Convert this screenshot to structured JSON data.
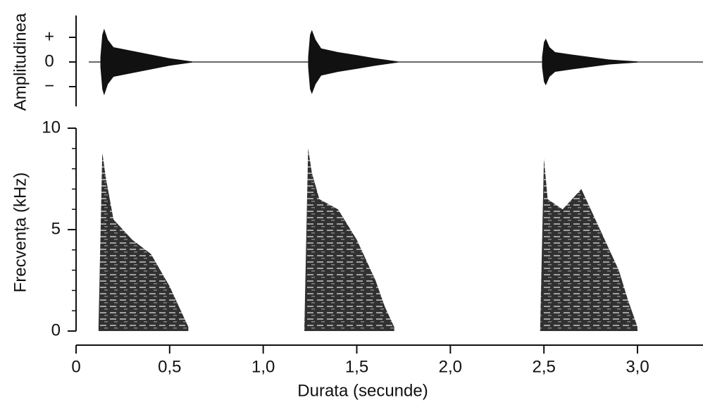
{
  "chart_data": [
    {
      "type": "waveform",
      "ylabel": "Amplitudinea",
      "color": "#111111",
      "xlim": [
        0,
        3.35
      ],
      "ylim": [
        -1.8,
        1.8
      ],
      "yticks": [
        {
          "value": 1,
          "label": "+"
        },
        {
          "value": 0,
          "label": "0"
        },
        {
          "value": -1,
          "label": "−"
        }
      ],
      "series": [
        {
          "x": [
            0.13,
            0.14,
            0.15,
            0.17,
            0.2,
            0.3,
            0.4,
            0.5,
            0.62
          ],
          "values": [
            0.2,
            1.1,
            1.35,
            0.9,
            0.6,
            0.45,
            0.3,
            0.15,
            0.02
          ]
        },
        {
          "x": [
            1.24,
            1.25,
            1.26,
            1.28,
            1.31,
            1.4,
            1.5,
            1.6,
            1.72
          ],
          "values": [
            0.2,
            1.1,
            1.3,
            0.9,
            0.55,
            0.4,
            0.28,
            0.15,
            0.02
          ]
        },
        {
          "x": [
            2.49,
            2.5,
            2.51,
            2.53,
            2.56,
            2.65,
            2.75,
            2.85,
            3.0
          ],
          "values": [
            0.2,
            0.8,
            0.95,
            0.6,
            0.4,
            0.3,
            0.2,
            0.1,
            0.02
          ]
        }
      ]
    },
    {
      "type": "spectrogram",
      "ylabel": "Frecvența (kHz)",
      "xlabel": "Durata (secunde)",
      "color": "#1a1a1a",
      "xlim": [
        0,
        3.35
      ],
      "ylim": [
        0,
        10
      ],
      "yticks": [
        0,
        5,
        10
      ],
      "yminorticks": [
        1,
        2,
        3,
        4,
        6,
        7,
        8,
        9
      ],
      "xticks": [
        0,
        {
          "value": 0.5,
          "label": "0,5"
        },
        {
          "value": 1,
          "label": "1,0"
        },
        {
          "value": 1.5,
          "label": "1,5"
        },
        {
          "value": 2,
          "label": "2,0"
        },
        {
          "value": 2.5,
          "label": "2,5"
        },
        {
          "value": 3,
          "label": "3,0"
        }
      ],
      "series": [
        {
          "x": [
            0.12,
            0.14,
            0.16,
            0.2,
            0.3,
            0.4,
            0.5,
            0.55,
            0.6
          ],
          "values": [
            0.2,
            8.8,
            7.5,
            5.5,
            4.5,
            3.8,
            2.2,
            1.2,
            0.2
          ]
        },
        {
          "x": [
            1.22,
            1.24,
            1.26,
            1.3,
            1.4,
            1.5,
            1.6,
            1.65,
            1.7
          ],
          "values": [
            0.2,
            9.0,
            7.8,
            6.5,
            6.0,
            4.5,
            2.5,
            1.2,
            0.2
          ]
        },
        {
          "x": [
            2.48,
            2.5,
            2.52,
            2.6,
            2.7,
            2.8,
            2.9,
            2.95,
            3.0
          ],
          "values": [
            0.2,
            8.5,
            6.5,
            6.0,
            7.0,
            5.0,
            3.0,
            1.5,
            0.2
          ]
        }
      ]
    }
  ]
}
